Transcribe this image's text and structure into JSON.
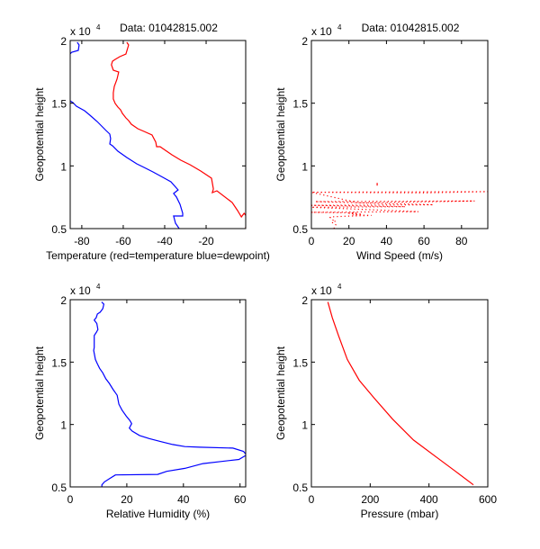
{
  "figure": {
    "title_text": "Data: 01042815.002",
    "y_exponent_prefix": "x 10",
    "y_exponent_power": "4"
  },
  "chart_data": [
    {
      "id": "temperature",
      "type": "line",
      "title": "Data: 01042815.002",
      "xlabel": "Temperature (red=temperature blue=dewpoint)",
      "ylabel": "Geopotential height",
      "xlim": [
        -85.6,
        -0.9
      ],
      "ylim": [
        5000,
        20000
      ],
      "xticks": [
        -80,
        -60,
        -40,
        -20
      ],
      "xtick_labels": [
        "-80",
        "-60",
        "-40",
        "-20"
      ],
      "yticks": [
        5000,
        10000,
        15000,
        20000
      ],
      "ytick_labels": [
        "0.5",
        "1",
        "1.5",
        "2"
      ],
      "y_multiplier_label": "x 10^4",
      "grid": false,
      "series": [
        {
          "name": "temperature",
          "color": "#ff0000",
          "x": [
            -58.3,
            -57.4,
            -58.7,
            -61.7,
            -63.9,
            -65.2,
            -65.7,
            -64.8,
            -62.2,
            -63.0,
            -64.3,
            -64.8,
            -64.8,
            -63.9,
            -62.6,
            -61.3,
            -60.4,
            -58.7,
            -57.4,
            -56.1,
            -53.0,
            -50.0,
            -46.1,
            -44.3,
            -43.9,
            -42.2,
            -36.5,
            -32.2,
            -27.8,
            -22.6,
            -17.4,
            -16.5,
            -17.0,
            -14.8,
            -7.4,
            -4.8,
            -3.0,
            -1.7,
            0.4,
            -1.0
          ],
          "y": [
            19856,
            19641,
            18923,
            18708,
            18492,
            18349,
            18062,
            17631,
            17488,
            16914,
            16340,
            15837,
            15335,
            14976,
            14689,
            14474,
            14187,
            13828,
            13613,
            13326,
            12967,
            12752,
            12465,
            11891,
            11532,
            11532,
            10886,
            10455,
            10097,
            9594,
            9020,
            8158,
            7871,
            8015,
            7082,
            6436,
            5933,
            6220,
            5790,
            5072
          ]
        },
        {
          "name": "dewpoint",
          "color": "#0000ff",
          "x": [
            -82.2,
            -81.3,
            -81.7,
            -84.8,
            -87.0,
            -89.1,
            -85.7,
            -86.1,
            -89.6,
            -88.7,
            -89.1,
            -89.1,
            -88.3,
            -87.0,
            -84.3,
            -82.6,
            -78.7,
            -76.1,
            -72.6,
            -68.3,
            -66.5,
            -66.1,
            -66.5,
            -65.2,
            -62.6,
            -58.3,
            -53.5,
            -50.0,
            -45.7,
            -40.9,
            -37.0,
            -33.5,
            -35.7,
            -34.3,
            -32.6,
            -31.3,
            -31.3,
            -35.7,
            -34.8,
            -33.0
          ],
          "y": [
            19856,
            19641,
            19210,
            19067,
            18708,
            18349,
            18062,
            17703,
            17416,
            16986,
            16483,
            15837,
            15550,
            15335,
            15048,
            14761,
            14402,
            14043,
            13541,
            12824,
            12537,
            12178,
            11747,
            11604,
            11173,
            10671,
            10168,
            9881,
            9522,
            9092,
            8733,
            8087,
            7800,
            7513,
            6939,
            6220,
            6005,
            6005,
            5431,
            5000
          ]
        }
      ]
    },
    {
      "id": "wind",
      "type": "line",
      "title": "Data: 01042815.002",
      "xlabel": "Wind Speed (m/s)",
      "ylabel": "Geopotential height",
      "xlim": [
        0,
        94
      ],
      "ylim": [
        5000,
        20000
      ],
      "xticks": [
        0,
        20,
        40,
        60,
        80
      ],
      "xtick_labels": [
        "0",
        "20",
        "40",
        "60",
        "80"
      ],
      "yticks": [
        5000,
        10000,
        15000,
        20000
      ],
      "ytick_labels": [
        "0.5",
        "1",
        "1.5",
        "2"
      ],
      "y_multiplier_label": "x 10^4",
      "grid": false,
      "series": [
        {
          "name": "wind speed",
          "color": "#ff0000",
          "style": "dotted",
          "x": [
            12,
            13,
            11,
            13,
            11,
            10,
            12,
            20,
            32,
            22,
            27,
            20,
            24,
            0,
            57,
            0,
            50,
            0,
            65,
            2,
            87,
            25,
            0,
            60,
            94,
            0
          ],
          "y": [
            5000,
            5300,
            5500,
            5600,
            5700,
            5900,
            5950,
            6000,
            6050,
            6100,
            6150,
            6200,
            6250,
            6300,
            6350,
            6700,
            6750,
            6850,
            6900,
            7150,
            7200,
            7050,
            7900,
            7850,
            7950,
            7900
          ]
        },
        {
          "name": "wind speed outlier",
          "color": "#ff0000",
          "style": "point",
          "x": [
            35
          ],
          "y": [
            8500
          ]
        }
      ]
    },
    {
      "id": "humidity",
      "type": "line",
      "xlabel": "Relative Humidity (%)",
      "ylabel": "Geopotential height",
      "xlim": [
        0,
        62
      ],
      "ylim": [
        5000,
        20000
      ],
      "xticks": [
        0,
        20,
        40,
        60
      ],
      "xtick_labels": [
        "0",
        "20",
        "40",
        "60"
      ],
      "yticks": [
        5000,
        10000,
        15000,
        20000
      ],
      "ytick_labels": [
        "0.5",
        "1",
        "1.5",
        "2"
      ],
      "y_multiplier_label": "x 10^4",
      "grid": false,
      "series": [
        {
          "name": "relative humidity",
          "color": "#0000ff",
          "x": [
            11.1,
            11.9,
            11.5,
            10.6,
            9.6,
            9.2,
            8.5,
            9.4,
            9.8,
            9.2,
            8.5,
            8.5,
            8.3,
            8.9,
            9.6,
            10.4,
            11.5,
            12.6,
            13.8,
            15.1,
            16.6,
            17.2,
            18.3,
            19.8,
            21.1,
            21.7,
            20.9,
            21.9,
            24.5,
            27.9,
            31.9,
            36.2,
            40.5,
            45.8,
            57.5,
            61.2,
            62.3,
            59.6,
            53.2,
            46.9,
            40.5,
            34.1,
            30.9,
            16.0,
            13.8,
            12.1,
            11.2,
            11.2
          ],
          "y": [
            19809,
            19641,
            19282,
            18995,
            18852,
            18565,
            18373,
            18086,
            17608,
            17368,
            17129,
            16172,
            15933,
            15215,
            14856,
            14498,
            14139,
            13660,
            13301,
            12823,
            12344,
            11627,
            11148,
            10670,
            10311,
            10072,
            9713,
            9474,
            9115,
            8876,
            8636,
            8397,
            8230,
            8182,
            8110,
            7847,
            7560,
            7201,
            7033,
            6866,
            6483,
            6244,
            6005,
            5957,
            5646,
            5407,
            5167,
            5000
          ]
        }
      ]
    },
    {
      "id": "pressure",
      "type": "line",
      "xlabel": "Pressure (mbar)",
      "ylabel": "Geopotential height",
      "xlim": [
        0,
        600
      ],
      "ylim": [
        5000,
        20000
      ],
      "xticks": [
        0,
        200,
        400,
        600
      ],
      "xtick_labels": [
        "0",
        "200",
        "400",
        "600"
      ],
      "yticks": [
        5000,
        10000,
        15000,
        20000
      ],
      "ytick_labels": [
        "0.5",
        "1",
        "1.5",
        "2"
      ],
      "y_multiplier_label": "x 10^4",
      "grid": false,
      "series": [
        {
          "name": "pressure",
          "color": "#ff0000",
          "x": [
            56,
            71,
            92,
            122,
            163,
            214,
            276,
            347,
            429,
            490,
            551
          ],
          "y": [
            19809,
            18565,
            17129,
            15215,
            13541,
            12105,
            10431,
            8756,
            7321,
            6244,
            5167
          ]
        }
      ]
    }
  ]
}
